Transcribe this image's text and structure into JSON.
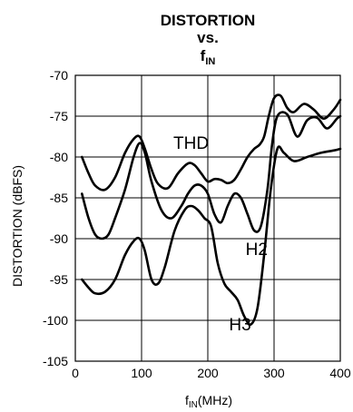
{
  "chart_data": {
    "type": "line",
    "title_lines": [
      "DISTORTION",
      "vs."
    ],
    "title_sym": {
      "main": "f",
      "sub": "IN"
    },
    "xlabel": {
      "main": "f",
      "sub": "IN",
      "unit": "(MHz)"
    },
    "ylabel": "DISTORTION (dBFS)",
    "xlim": [
      0,
      400
    ],
    "ylim": [
      -105,
      -70
    ],
    "xticks": [
      0,
      100,
      200,
      300,
      400
    ],
    "yticks": [
      -70,
      -75,
      -80,
      -85,
      -90,
      -95,
      -100,
      -105
    ],
    "grid": true,
    "series": [
      {
        "name": "THD",
        "x": [
          10,
          20,
          30,
          45,
          60,
          75,
          88,
          97,
          105,
          115,
          125,
          140,
          155,
          170,
          180,
          190,
          200,
          210,
          220,
          230,
          240,
          250,
          260,
          270,
          278,
          285,
          292,
          300,
          310,
          320,
          330,
          345,
          360,
          375,
          390,
          400
        ],
        "y": [
          -80,
          -82,
          -83.5,
          -84,
          -82.5,
          -79.5,
          -77.8,
          -77.5,
          -79,
          -81.5,
          -83.3,
          -83.8,
          -82,
          -80.8,
          -81,
          -82,
          -83,
          -82.7,
          -82.8,
          -83.2,
          -82.8,
          -81.5,
          -80,
          -79,
          -78.5,
          -77.5,
          -75,
          -72.8,
          -72.5,
          -74,
          -74.5,
          -73.5,
          -74.2,
          -75.3,
          -74.2,
          -73
        ]
      },
      {
        "name": "H2",
        "x": [
          10,
          20,
          30,
          40,
          50,
          60,
          75,
          88,
          97,
          105,
          115,
          130,
          145,
          160,
          170,
          180,
          190,
          200,
          210,
          220,
          230,
          240,
          250,
          260,
          270,
          280,
          290,
          297,
          305,
          320,
          335,
          350,
          365,
          380,
          395,
          400
        ],
        "y": [
          -84.5,
          -87.5,
          -89.5,
          -90,
          -89.5,
          -87.5,
          -84,
          -80,
          -78.3,
          -79.5,
          -83,
          -86.5,
          -87.5,
          -86,
          -84.5,
          -83.5,
          -83.5,
          -84.5,
          -87,
          -88,
          -86,
          -84.5,
          -85,
          -87,
          -89,
          -88.5,
          -84,
          -78.5,
          -75,
          -74.8,
          -77.5,
          -75.5,
          -75.2,
          -76.5,
          -75.3,
          -75
        ]
      },
      {
        "name": "H3",
        "x": [
          10,
          20,
          30,
          45,
          60,
          75,
          88,
          97,
          105,
          115,
          125,
          135,
          150,
          165,
          175,
          185,
          195,
          205,
          215,
          225,
          235,
          245,
          255,
          265,
          275,
          285,
          295,
          305,
          315,
          330,
          350,
          370,
          390,
          400
        ],
        "y": [
          -95,
          -96,
          -96.7,
          -96.5,
          -95,
          -92,
          -90.3,
          -90,
          -91.5,
          -95,
          -95.5,
          -93.5,
          -89,
          -86.5,
          -86,
          -86.5,
          -87.5,
          -88.5,
          -93,
          -95.5,
          -96.5,
          -97.5,
          -99.5,
          -100.5,
          -98.5,
          -92,
          -84,
          -79,
          -79.5,
          -80.5,
          -80,
          -79.5,
          -79.2,
          -79
        ]
      }
    ],
    "annotations": [
      {
        "text": "THD",
        "x": 148,
        "y": -79
      },
      {
        "text": "H2",
        "x": 257,
        "y": -92
      },
      {
        "text": "H3",
        "x": 232,
        "y": -101.2
      }
    ]
  }
}
